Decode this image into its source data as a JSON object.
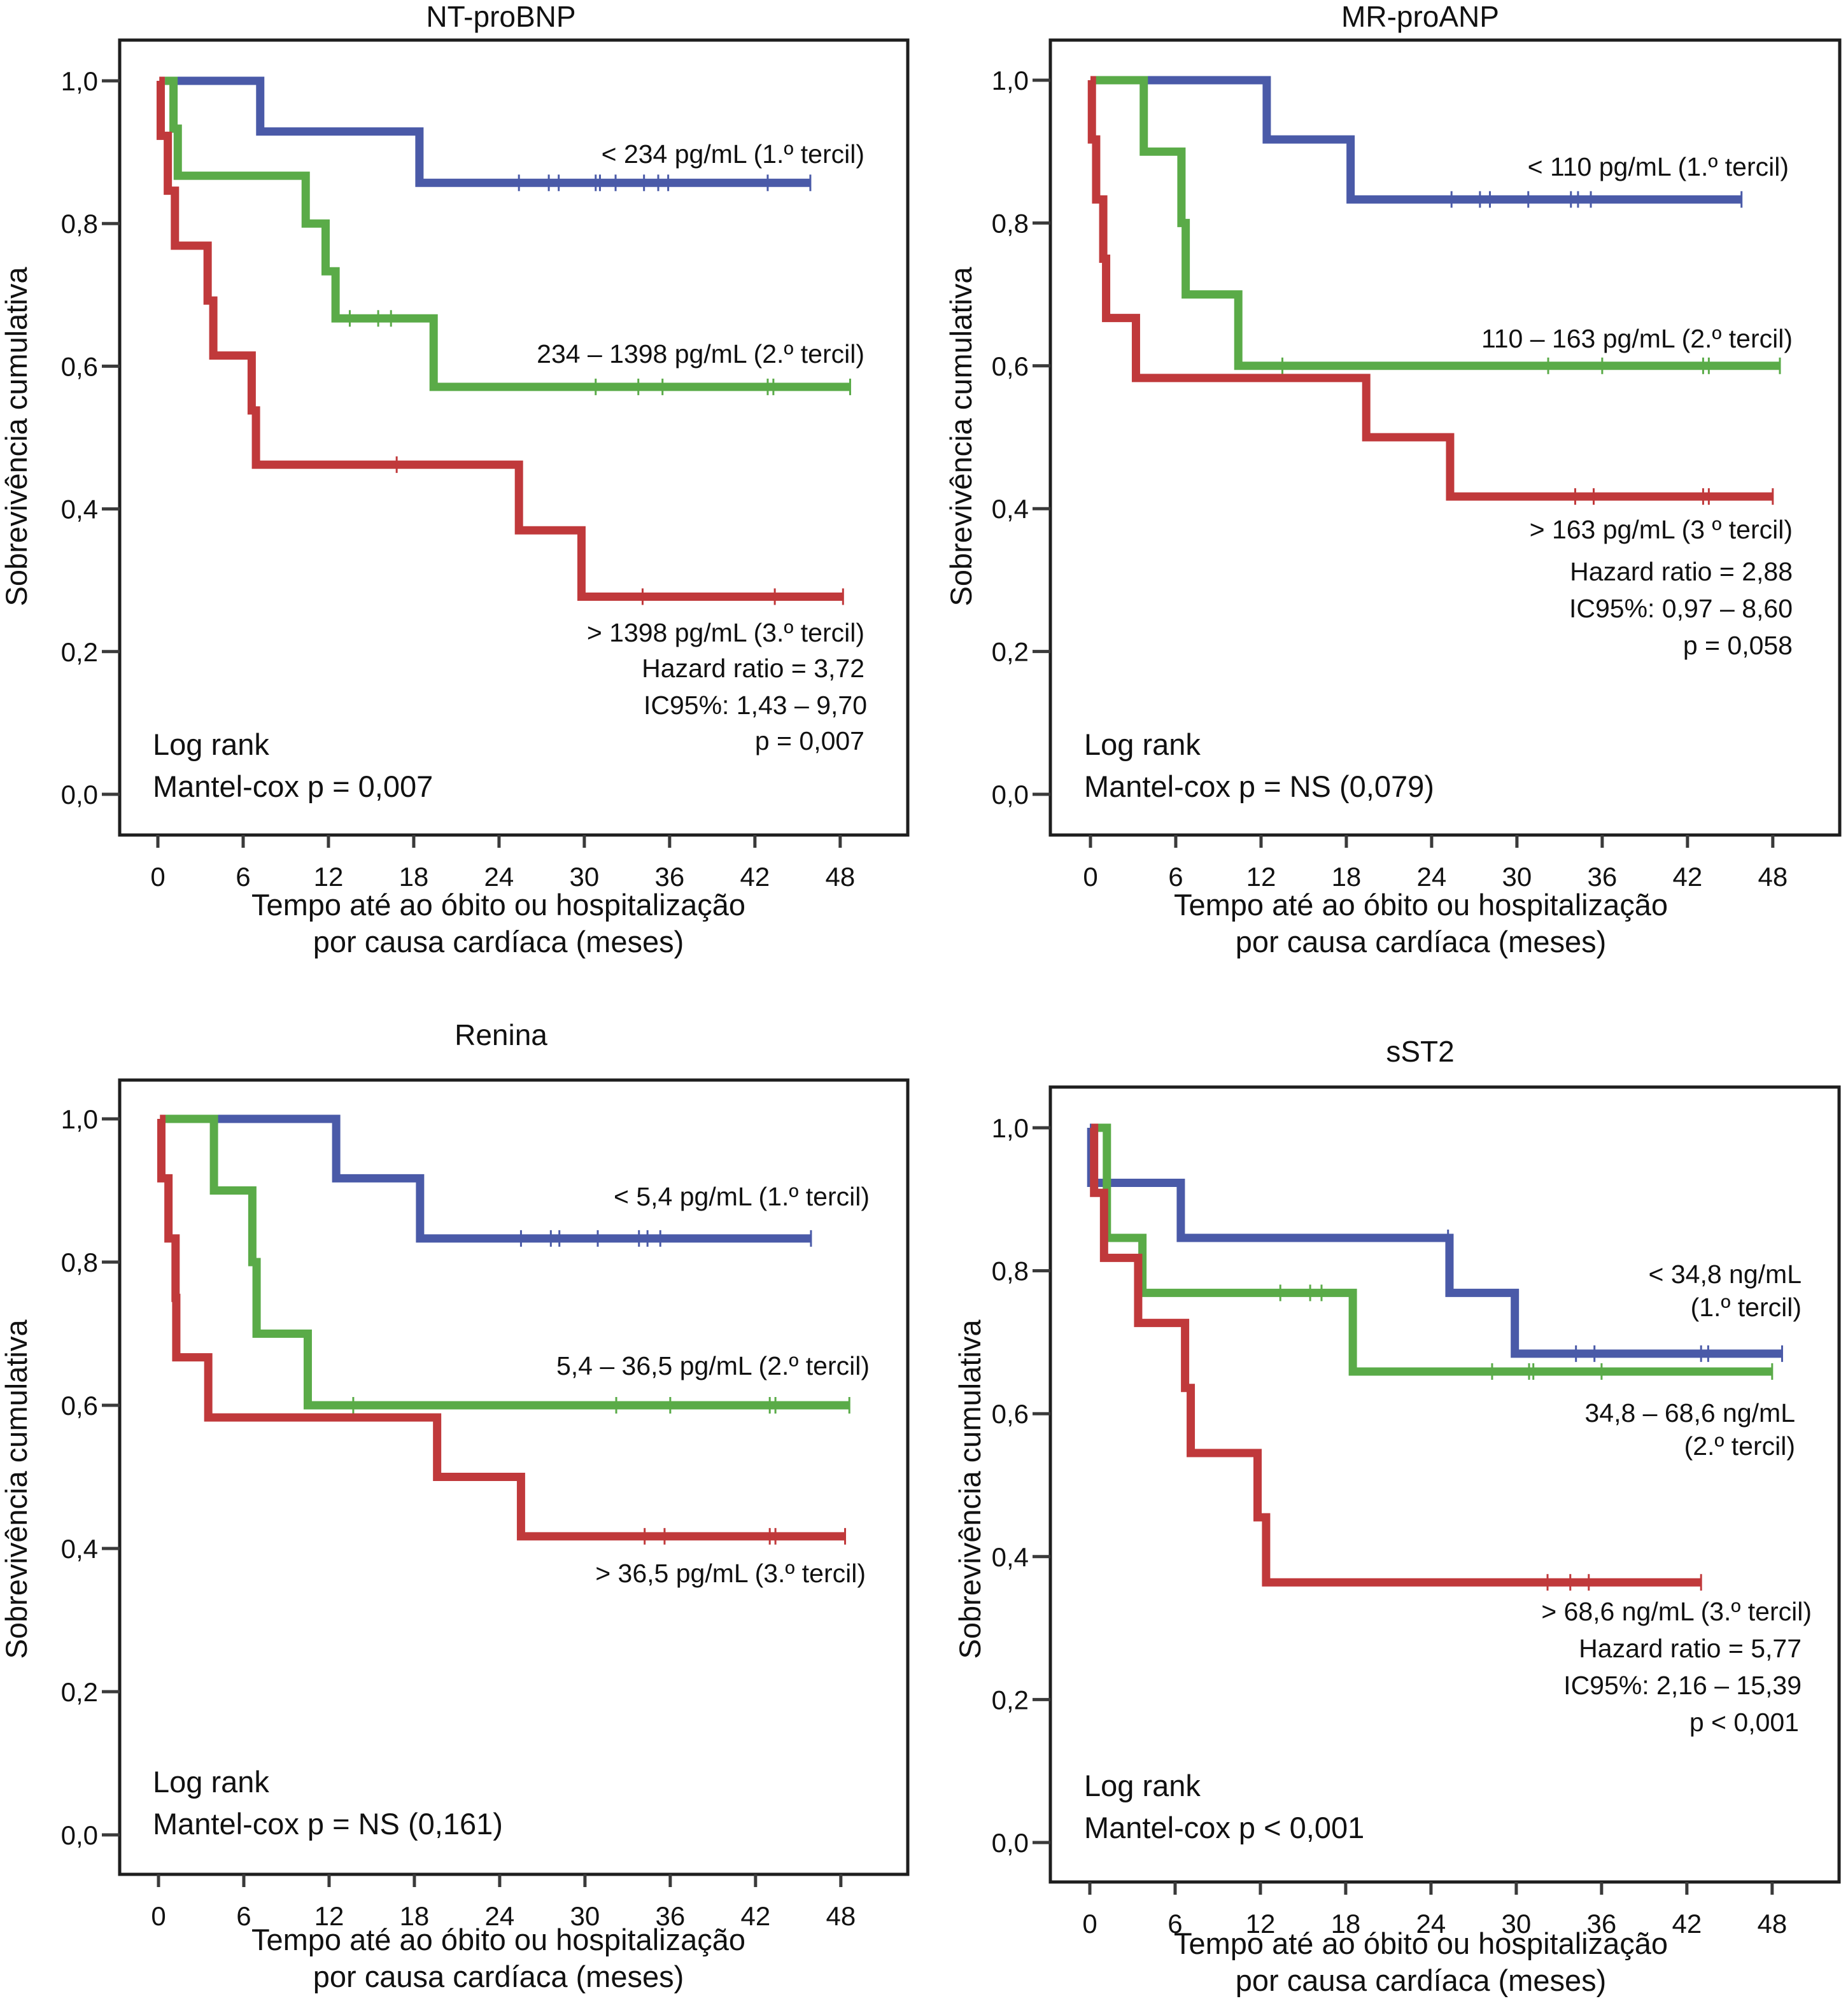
{
  "colors": {
    "tercile1": "#4a5aa8",
    "tercile2": "#5aab48",
    "tercile3": "#c0393b"
  },
  "chart_data": [
    {
      "type": "line",
      "subtype": "kaplan-meier",
      "title": "NT-proBNP",
      "xlabel": [
        "Tempo até ao óbito ou hospitalização",
        "por causa cardíaca (meses)"
      ],
      "ylabel": "Sobrevivência cumulativa",
      "xlim": [
        0,
        48
      ],
      "ylim": [
        0,
        1
      ],
      "xticks": [
        0,
        6,
        12,
        18,
        24,
        30,
        36,
        42,
        48
      ],
      "xtick_labels": [
        "0",
        "6",
        "12",
        "18",
        "24",
        "30",
        "36",
        "42",
        "48"
      ],
      "yticks": [
        0,
        0.2,
        0.4,
        0.6,
        0.8,
        1.0
      ],
      "ytick_labels": [
        "0,0",
        "0,2",
        "0,4",
        "0,6",
        "0,8",
        "1,0"
      ],
      "grid": false,
      "series": [
        {
          "name": "< 234 pg/mL (1.º tercil)",
          "color_key": "tercile1",
          "start": 0.5,
          "steps": [
            [
              7.2,
              0.929
            ],
            [
              18.4,
              0.857
            ]
          ],
          "end": 45.9,
          "censored": [
            25.4,
            27.5,
            28.2,
            30.8,
            31.1,
            32.2,
            34.2,
            35.2,
            35.9,
            42.9,
            45.9
          ]
        },
        {
          "name": "234 – 1398 pg/mL (2.º tercil)",
          "color_key": "tercile2",
          "start": 0.5,
          "steps": [
            [
              1.1,
              0.933
            ],
            [
              1.4,
              0.867
            ],
            [
              10.4,
              0.8
            ],
            [
              11.8,
              0.733
            ],
            [
              12.5,
              0.667
            ],
            [
              19.4,
              0.571
            ]
          ],
          "end": 48.7,
          "censored": [
            13.5,
            15.5,
            16.4,
            30.8,
            33.8,
            35.5,
            42.9,
            43.3,
            48.7
          ]
        },
        {
          "name": "> 1398 pg/mL (3.º tercil)",
          "color_key": "tercile3",
          "start": 0.1,
          "steps": [
            [
              0.2,
              0.923
            ],
            [
              0.7,
              0.846
            ],
            [
              1.2,
              0.769
            ],
            [
              3.5,
              0.692
            ],
            [
              3.9,
              0.615
            ],
            [
              6.6,
              0.538
            ],
            [
              6.9,
              0.462
            ],
            [
              25.4,
              0.37
            ],
            [
              29.8,
              0.277
            ]
          ],
          "end": 48.2,
          "censored": [
            16.8,
            34.1,
            43.4,
            48.2
          ]
        }
      ],
      "annotations": {
        "label1": "< 234 pg/mL (1.º tercil)",
        "label2": "234 – 1398 pg/mL (2.º tercil)",
        "label3": "> 1398 pg/mL (3.º tercil)",
        "hazard_ratio": "Hazard ratio = 3,72",
        "ci": "IC95%: 1,43 – 9,70",
        "p": "p = 0,007",
        "logrank": "Log rank",
        "mantel": "Mantel-cox p = 0,007"
      }
    },
    {
      "type": "line",
      "subtype": "kaplan-meier",
      "title": "MR-proANP",
      "xlabel": [
        "Tempo até ao óbito ou hospitalização",
        "por causa cardíaca (meses)"
      ],
      "ylabel": "Sobrevivência cumulativa",
      "xlim": [
        0,
        48
      ],
      "ylim": [
        0,
        1
      ],
      "xticks": [
        0,
        6,
        12,
        18,
        24,
        30,
        36,
        42,
        48
      ],
      "xtick_labels": [
        "0",
        "6",
        "12",
        "18",
        "24",
        "30",
        "36",
        "42",
        "48"
      ],
      "yticks": [
        0,
        0.2,
        0.4,
        0.6,
        0.8,
        1.0
      ],
      "ytick_labels": [
        "0,0",
        "0,2",
        "0,4",
        "0,6",
        "0,8",
        "1,0"
      ],
      "grid": false,
      "series": [
        {
          "name": "< 110 pg/mL (1.º tercil)",
          "color_key": "tercile1",
          "start": 3.0,
          "steps": [
            [
              12.4,
              0.917
            ],
            [
              18.3,
              0.833
            ]
          ],
          "end": 45.8,
          "censored": [
            25.4,
            27.4,
            28.1,
            30.8,
            33.8,
            34.3,
            35.2,
            45.8
          ]
        },
        {
          "name": "110 – 163 pg/mL (2.º tercil)",
          "color_key": "tercile2",
          "start": 0.3,
          "steps": [
            [
              3.75,
              0.9
            ],
            [
              6.4,
              0.8
            ],
            [
              6.7,
              0.7
            ],
            [
              10.4,
              0.6
            ]
          ],
          "end": 48.5,
          "censored": [
            13.5,
            32.2,
            36.0,
            43.1,
            43.5,
            48.5
          ]
        },
        {
          "name": "> 163 pg/mL (3 º tercil)",
          "color_key": "tercile3",
          "start": 0.0,
          "steps": [
            [
              0.1,
              0.917
            ],
            [
              0.4,
              0.833
            ],
            [
              0.9,
              0.75
            ],
            [
              1.1,
              0.667
            ],
            [
              3.2,
              0.583
            ],
            [
              19.4,
              0.5
            ],
            [
              25.3,
              0.417
            ]
          ],
          "end": 48.0,
          "censored": [
            34.1,
            35.4,
            43.1,
            43.5,
            48.0
          ]
        }
      ],
      "annotations": {
        "label1": "< 110 pg/mL (1.º tercil)",
        "label2": "110 – 163 pg/mL (2.º tercil)",
        "label3": "> 163 pg/mL (3 º tercil)",
        "hazard_ratio": "Hazard ratio = 2,88",
        "ci": "IC95%: 0,97 – 8,60",
        "p": "p = 0,058",
        "logrank": "Log rank",
        "mantel": "Mantel-cox p = NS (0,079)"
      }
    },
    {
      "type": "line",
      "subtype": "kaplan-meier",
      "title": "Renina",
      "xlabel": [
        "Tempo até ao óbito ou hospitalização",
        "por causa cardíaca (meses)"
      ],
      "ylabel": "Sobrevivência cumulativa",
      "xlim": [
        0,
        48
      ],
      "ylim": [
        0,
        1
      ],
      "xticks": [
        0,
        6,
        12,
        18,
        24,
        30,
        36,
        42,
        48
      ],
      "xtick_labels": [
        "0",
        "6",
        "12",
        "18",
        "24",
        "30",
        "36",
        "42",
        "48"
      ],
      "yticks": [
        0,
        0.2,
        0.4,
        0.6,
        0.8,
        1.0
      ],
      "ytick_labels": [
        "0,0",
        "0,2",
        "0,4",
        "0,6",
        "0,8",
        "1,0"
      ],
      "grid": false,
      "series": [
        {
          "name": "< 5,4 pg/mL (1.º tercil)",
          "color_key": "tercile1",
          "start": 3.5,
          "steps": [
            [
              12.5,
              0.917
            ],
            [
              18.4,
              0.833
            ]
          ],
          "end": 45.9,
          "censored": [
            25.5,
            27.6,
            28.2,
            30.9,
            33.8,
            34.4,
            35.3,
            45.9
          ]
        },
        {
          "name": "5,4 – 36,5 pg/mL (2.º tercil)",
          "color_key": "tercile2",
          "start": 0.4,
          "steps": [
            [
              3.9,
              0.9
            ],
            [
              6.6,
              0.8
            ],
            [
              6.9,
              0.7
            ],
            [
              10.5,
              0.6
            ]
          ],
          "end": 48.6,
          "censored": [
            13.7,
            32.2,
            36.0,
            43.0,
            43.4,
            48.6
          ]
        },
        {
          "name": "> 36,5 pg/mL (3.º tercil)",
          "color_key": "tercile3",
          "start": 0.1,
          "steps": [
            [
              0.2,
              0.917
            ],
            [
              0.7,
              0.833
            ],
            [
              1.2,
              0.75
            ],
            [
              1.25,
              0.667
            ],
            [
              3.5,
              0.583
            ],
            [
              19.6,
              0.5
            ],
            [
              25.5,
              0.417
            ]
          ],
          "end": 48.3,
          "censored": [
            34.2,
            35.6,
            43.0,
            43.4,
            48.3
          ]
        }
      ],
      "annotations": {
        "label1": "< 5,4 pg/mL (1.º tercil)",
        "label2": "5,4 – 36,5 pg/mL (2.º tercil)",
        "label3": "> 36,5 pg/mL (3.º tercil)",
        "logrank": "Log rank",
        "mantel": "Mantel-cox p = NS (0,161)"
      }
    },
    {
      "type": "line",
      "subtype": "kaplan-meier",
      "title": "sST2",
      "xlabel": [
        "Tempo até ao óbito ou hospitalização",
        "por causa cardíaca (meses)"
      ],
      "ylabel": "Sobrevivência cumulativa",
      "xlim": [
        0,
        48
      ],
      "ylim": [
        0,
        1
      ],
      "xticks": [
        0,
        6,
        12,
        18,
        24,
        30,
        36,
        42,
        48
      ],
      "xtick_labels": [
        "0",
        "6",
        "12",
        "18",
        "24",
        "30",
        "36",
        "42",
        "48"
      ],
      "yticks": [
        0,
        0.2,
        0.4,
        0.6,
        0.8,
        1.0
      ],
      "ytick_labels": [
        "0,0",
        "0,2",
        "0,4",
        "0,6",
        "0,8",
        "1,0"
      ],
      "grid": false,
      "series": [
        {
          "name": "< 34,8 ng/mL (1.º tercil)",
          "color_key": "tercile1",
          "start": 0.0,
          "steps": [
            [
              0.1,
              0.923
            ],
            [
              6.4,
              0.846
            ],
            [
              25.3,
              0.769
            ],
            [
              29.9,
              0.684
            ]
          ],
          "end": 48.7,
          "censored": [
            25.2,
            34.2,
            35.5,
            43.0,
            43.5,
            48.7
          ]
        },
        {
          "name": "34,8 – 68,6 ng/mL (2.º tercil)",
          "color_key": "tercile2",
          "start": 0.5,
          "steps": [
            [
              1.2,
              0.846
            ],
            [
              3.7,
              0.769
            ],
            [
              18.5,
              0.659
            ]
          ],
          "end": 48.0,
          "censored": [
            13.4,
            15.5,
            16.3,
            28.3,
            30.9,
            31.2,
            36.0,
            48.0
          ]
        },
        {
          "name": "> 68,6 ng/mL (3.º tercil)",
          "color_key": "tercile3",
          "start": 0.1,
          "steps": [
            [
              0.3,
              0.909
            ],
            [
              1.0,
              0.818
            ],
            [
              3.4,
              0.727
            ],
            [
              6.7,
              0.636
            ],
            [
              7.1,
              0.545
            ],
            [
              11.8,
              0.455
            ],
            [
              12.4,
              0.364
            ]
          ],
          "end": 43.0,
          "censored": [
            32.2,
            33.8,
            35.1,
            43.0
          ]
        }
      ],
      "annotations": {
        "label1": [
          "< 34,8 ng/mL",
          "(1.º tercil)"
        ],
        "label2": [
          "34,8 – 68,6 ng/mL",
          "(2.º tercil)"
        ],
        "label3": "> 68,6 ng/mL (3.º tercil)",
        "hazard_ratio": "Hazard ratio = 5,77",
        "ci": "IC95%: 2,16 – 15,39",
        "p": "p < 0,001",
        "logrank": "Log rank",
        "mantel": "Mantel-cox p < 0,001"
      }
    }
  ]
}
